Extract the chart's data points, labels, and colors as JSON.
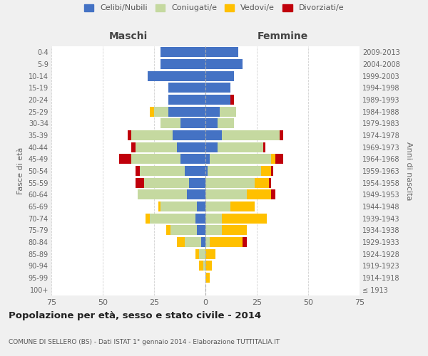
{
  "age_groups": [
    "100+",
    "95-99",
    "90-94",
    "85-89",
    "80-84",
    "75-79",
    "70-74",
    "65-69",
    "60-64",
    "55-59",
    "50-54",
    "45-49",
    "40-44",
    "35-39",
    "30-34",
    "25-29",
    "20-24",
    "15-19",
    "10-14",
    "5-9",
    "0-4"
  ],
  "birth_years": [
    "≤ 1913",
    "1914-1918",
    "1919-1923",
    "1924-1928",
    "1929-1933",
    "1934-1938",
    "1939-1943",
    "1944-1948",
    "1949-1953",
    "1954-1958",
    "1959-1963",
    "1964-1968",
    "1969-1973",
    "1974-1978",
    "1979-1983",
    "1984-1988",
    "1989-1993",
    "1994-1998",
    "1999-2003",
    "2004-2008",
    "2009-2013"
  ],
  "maschi": {
    "celibi": [
      0,
      0,
      0,
      0,
      2,
      4,
      5,
      4,
      9,
      8,
      10,
      12,
      14,
      16,
      12,
      18,
      18,
      18,
      28,
      22,
      22
    ],
    "coniugati": [
      0,
      0,
      1,
      3,
      8,
      13,
      22,
      18,
      24,
      22,
      22,
      24,
      20,
      20,
      10,
      7,
      0,
      0,
      0,
      0,
      0
    ],
    "vedovi": [
      0,
      0,
      2,
      2,
      4,
      2,
      2,
      1,
      0,
      0,
      0,
      0,
      0,
      0,
      0,
      2,
      0,
      0,
      0,
      0,
      0
    ],
    "divorziati": [
      0,
      0,
      0,
      0,
      0,
      0,
      0,
      0,
      0,
      4,
      2,
      6,
      2,
      2,
      0,
      0,
      0,
      0,
      0,
      0,
      0
    ]
  },
  "femmine": {
    "nubili": [
      0,
      0,
      0,
      0,
      0,
      0,
      0,
      0,
      0,
      0,
      1,
      2,
      6,
      8,
      6,
      7,
      12,
      12,
      14,
      18,
      16
    ],
    "coniugate": [
      0,
      0,
      0,
      0,
      2,
      8,
      8,
      12,
      20,
      24,
      26,
      30,
      22,
      28,
      8,
      8,
      0,
      0,
      0,
      0,
      0
    ],
    "vedove": [
      0,
      2,
      3,
      5,
      16,
      12,
      22,
      12,
      12,
      7,
      5,
      2,
      0,
      0,
      0,
      0,
      0,
      0,
      0,
      0,
      0
    ],
    "divorziate": [
      0,
      0,
      0,
      0,
      2,
      0,
      0,
      0,
      2,
      1,
      1,
      4,
      1,
      2,
      0,
      0,
      2,
      0,
      0,
      0,
      0
    ]
  },
  "colors": {
    "celibi_nubili": "#4472c4",
    "coniugati": "#c5d9a0",
    "vedovi": "#ffc000",
    "divorziati": "#c0000b"
  },
  "xlim": 75,
  "title": "Popolazione per età, sesso e stato civile - 2014",
  "subtitle": "COMUNE DI SELLERO (BS) - Dati ISTAT 1° gennaio 2014 - Elaborazione TUTTITALIA.IT",
  "ylabel_left": "Fasce di età",
  "ylabel_right": "Anni di nascita",
  "xlabel_left": "Maschi",
  "xlabel_right": "Femmine",
  "legend_labels": [
    "Celibi/Nubili",
    "Coniugati/e",
    "Vedovi/e",
    "Divorziati/e"
  ],
  "bg_color": "#f0f0f0",
  "bar_bg_color": "#ffffff"
}
